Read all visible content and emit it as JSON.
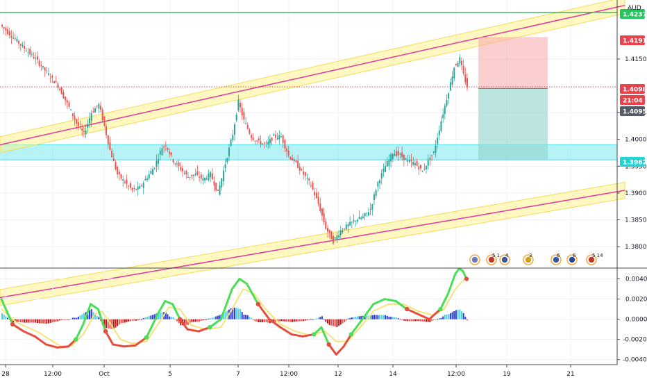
{
  "chart_data": [
    {
      "type": "candlestick",
      "symbol_currency": "AUD",
      "ylim": [
        1.376,
        1.426
      ],
      "y_ticks": [
        "1.4150",
        "1.4050",
        "1.4000",
        "1.3950",
        "1.3900",
        "1.3850",
        "1.3800"
      ],
      "x_ticks": [
        "28",
        "12:00",
        "Oct",
        "5",
        "7",
        "12:00",
        "12",
        "14",
        "12:00",
        "19",
        "21"
      ],
      "price_labels": [
        {
          "value": "1.4237",
          "color": "#22c55e",
          "text_color": "#000000"
        },
        {
          "value": "1.4191",
          "color": "#e8424a",
          "text_color": "#ffffff"
        },
        {
          "value": "1.4098",
          "color": "#e8424a",
          "text_color": "#ffffff"
        },
        {
          "value": "21:04",
          "color": "#e8424a",
          "text_color": "#ffffff"
        },
        {
          "value": "1.4095",
          "color": "#555b66",
          "text_color": "#ffffff"
        },
        {
          "value": "1.3962",
          "color": "#21d4d4",
          "text_color": "#000000"
        }
      ],
      "close_path": [
        [
          0,
          1.421
        ],
        [
          6,
          1.419
        ],
        [
          12,
          1.417
        ],
        [
          18,
          1.415
        ],
        [
          24,
          1.4125
        ],
        [
          30,
          1.41
        ],
        [
          36,
          1.406
        ],
        [
          40,
          1.403
        ],
        [
          44,
          1.401
        ],
        [
          48,
          1.405
        ],
        [
          52,
          1.4065
        ],
        [
          55,
          1.4025
        ],
        [
          58,
          1.398
        ],
        [
          62,
          1.3935
        ],
        [
          66,
          1.392
        ],
        [
          70,
          1.3905
        ],
        [
          74,
          1.391
        ],
        [
          78,
          1.393
        ],
        [
          82,
          1.395
        ],
        [
          86,
          1.3985
        ],
        [
          88,
          1.399
        ],
        [
          92,
          1.396
        ],
        [
          96,
          1.3945
        ],
        [
          100,
          1.393
        ],
        [
          104,
          1.3935
        ],
        [
          108,
          1.3925
        ],
        [
          112,
          1.3935
        ],
        [
          116,
          1.39
        ],
        [
          120,
          1.3955
        ],
        [
          124,
          1.401
        ],
        [
          127,
          1.407
        ],
        [
          130,
          1.4035
        ],
        [
          134,
          1.4005
        ],
        [
          138,
          1.3995
        ],
        [
          142,
          1.399
        ],
        [
          146,
          1.4005
        ],
        [
          150,
          1.4005
        ],
        [
          154,
          1.397
        ],
        [
          158,
          1.3955
        ],
        [
          162,
          1.3935
        ],
        [
          166,
          1.3915
        ],
        [
          170,
          1.388
        ],
        [
          174,
          1.3835
        ],
        [
          178,
          1.381
        ],
        [
          182,
          1.383
        ],
        [
          186,
          1.384
        ],
        [
          190,
          1.385
        ],
        [
          194,
          1.3855
        ],
        [
          198,
          1.387
        ],
        [
          202,
          1.392
        ],
        [
          206,
          1.395
        ],
        [
          210,
          1.3975
        ],
        [
          214,
          1.397
        ],
        [
          218,
          1.396
        ],
        [
          222,
          1.3955
        ],
        [
          226,
          1.394
        ],
        [
          229,
          1.396
        ],
        [
          232,
          1.3975
        ],
        [
          236,
          1.4035
        ],
        [
          240,
          1.409
        ],
        [
          243,
          1.4135
        ],
        [
          246,
          1.415
        ],
        [
          248,
          1.412
        ],
        [
          250,
          1.4098
        ]
      ],
      "horizontal_levels": [
        {
          "value": 1.4237,
          "color": "#22c55e"
        },
        {
          "value": 1.4098,
          "color": "#e8424a",
          "style": "dotted"
        }
      ],
      "zone": {
        "from": 1.3962,
        "to": 1.399,
        "color": "#5fe3ee"
      },
      "channels": [
        {
          "x0": 0,
          "y0": 1.399,
          "x1": 900,
          "y1": 1.425,
          "half_width": 0.0015
        },
        {
          "x0": 0,
          "y0": 1.3705,
          "x1": 900,
          "y1": 1.3905,
          "half_width": 0.0015
        }
      ],
      "position": {
        "entry": 1.4095,
        "stop": 1.4191,
        "target": 1.3962
      },
      "events": [
        {
          "index": 0,
          "label": ""
        },
        {
          "index": 1,
          "label": "5 1"
        },
        {
          "index": 2,
          "label": "4"
        },
        {
          "index": 3,
          "label": "3"
        },
        {
          "index": 4,
          "label": "6"
        },
        {
          "index": 5,
          "label": "6"
        },
        {
          "index": 6,
          "label": "5 14"
        }
      ]
    },
    {
      "type": "oscillator",
      "ylim": [
        -0.0045,
        0.005
      ],
      "y_ticks": [
        "0.0040",
        "0.0020",
        "0.0000",
        "-0.0020",
        "-0.0040"
      ],
      "fast_line": [
        [
          0,
          0.002
        ],
        [
          6,
          -0.0005
        ],
        [
          12,
          -0.0012
        ],
        [
          18,
          -0.0017
        ],
        [
          24,
          -0.0025
        ],
        [
          30,
          -0.0028
        ],
        [
          36,
          -0.0027
        ],
        [
          40,
          -0.002
        ],
        [
          44,
          -0.0005
        ],
        [
          48,
          0.0015
        ],
        [
          52,
          0.001
        ],
        [
          56,
          -0.0012
        ],
        [
          60,
          -0.0025
        ],
        [
          66,
          -0.0027
        ],
        [
          72,
          -0.0026
        ],
        [
          78,
          -0.0018
        ],
        [
          84,
          0.0005
        ],
        [
          88,
          0.0018
        ],
        [
          92,
          0.0015
        ],
        [
          96,
          0.0
        ],
        [
          100,
          -0.001
        ],
        [
          106,
          -0.0012
        ],
        [
          112,
          -0.0008
        ],
        [
          118,
          0.0
        ],
        [
          124,
          0.003
        ],
        [
          128,
          0.004
        ],
        [
          132,
          0.0035
        ],
        [
          138,
          0.0015
        ],
        [
          144,
          0.0
        ],
        [
          150,
          -0.0008
        ],
        [
          156,
          -0.0015
        ],
        [
          162,
          -0.0017
        ],
        [
          168,
          -0.0015
        ],
        [
          172,
          -0.0008
        ],
        [
          176,
          -0.0025
        ],
        [
          180,
          -0.0035
        ],
        [
          184,
          -0.0027
        ],
        [
          188,
          -0.0015
        ],
        [
          194,
          0.0
        ],
        [
          200,
          0.0015
        ],
        [
          206,
          0.002
        ],
        [
          212,
          0.0018
        ],
        [
          218,
          0.001
        ],
        [
          224,
          0.0005
        ],
        [
          230,
          0.0
        ],
        [
          236,
          0.001
        ],
        [
          240,
          0.0025
        ],
        [
          244,
          0.0045
        ],
        [
          246,
          0.005
        ],
        [
          248,
          0.0048
        ],
        [
          250,
          0.004
        ]
      ],
      "slow_line": [
        [
          0,
          0.001
        ],
        [
          8,
          -0.0003
        ],
        [
          14,
          -0.0008
        ],
        [
          20,
          -0.0013
        ],
        [
          26,
          -0.002
        ],
        [
          32,
          -0.0027
        ],
        [
          38,
          -0.0026
        ],
        [
          44,
          -0.0015
        ],
        [
          50,
          0.0005
        ],
        [
          54,
          0.0008
        ],
        [
          58,
          -0.0003
        ],
        [
          64,
          -0.002
        ],
        [
          70,
          -0.0024
        ],
        [
          78,
          -0.0022
        ],
        [
          86,
          0.0
        ],
        [
          90,
          0.0012
        ],
        [
          96,
          0.001
        ],
        [
          102,
          -0.0006
        ],
        [
          110,
          -0.001
        ],
        [
          118,
          -0.0008
        ],
        [
          124,
          0.001
        ],
        [
          130,
          0.003
        ],
        [
          136,
          0.0025
        ],
        [
          142,
          0.001
        ],
        [
          150,
          -0.0005
        ],
        [
          158,
          -0.0012
        ],
        [
          166,
          -0.0016
        ],
        [
          174,
          -0.0012
        ],
        [
          180,
          -0.0022
        ],
        [
          186,
          -0.0022
        ],
        [
          192,
          -0.001
        ],
        [
          200,
          0.0008
        ],
        [
          208,
          0.0015
        ],
        [
          216,
          0.0015
        ],
        [
          224,
          0.0008
        ],
        [
          232,
          0.0004
        ],
        [
          238,
          0.001
        ],
        [
          244,
          0.003
        ],
        [
          250,
          0.0042
        ]
      ]
    }
  ]
}
